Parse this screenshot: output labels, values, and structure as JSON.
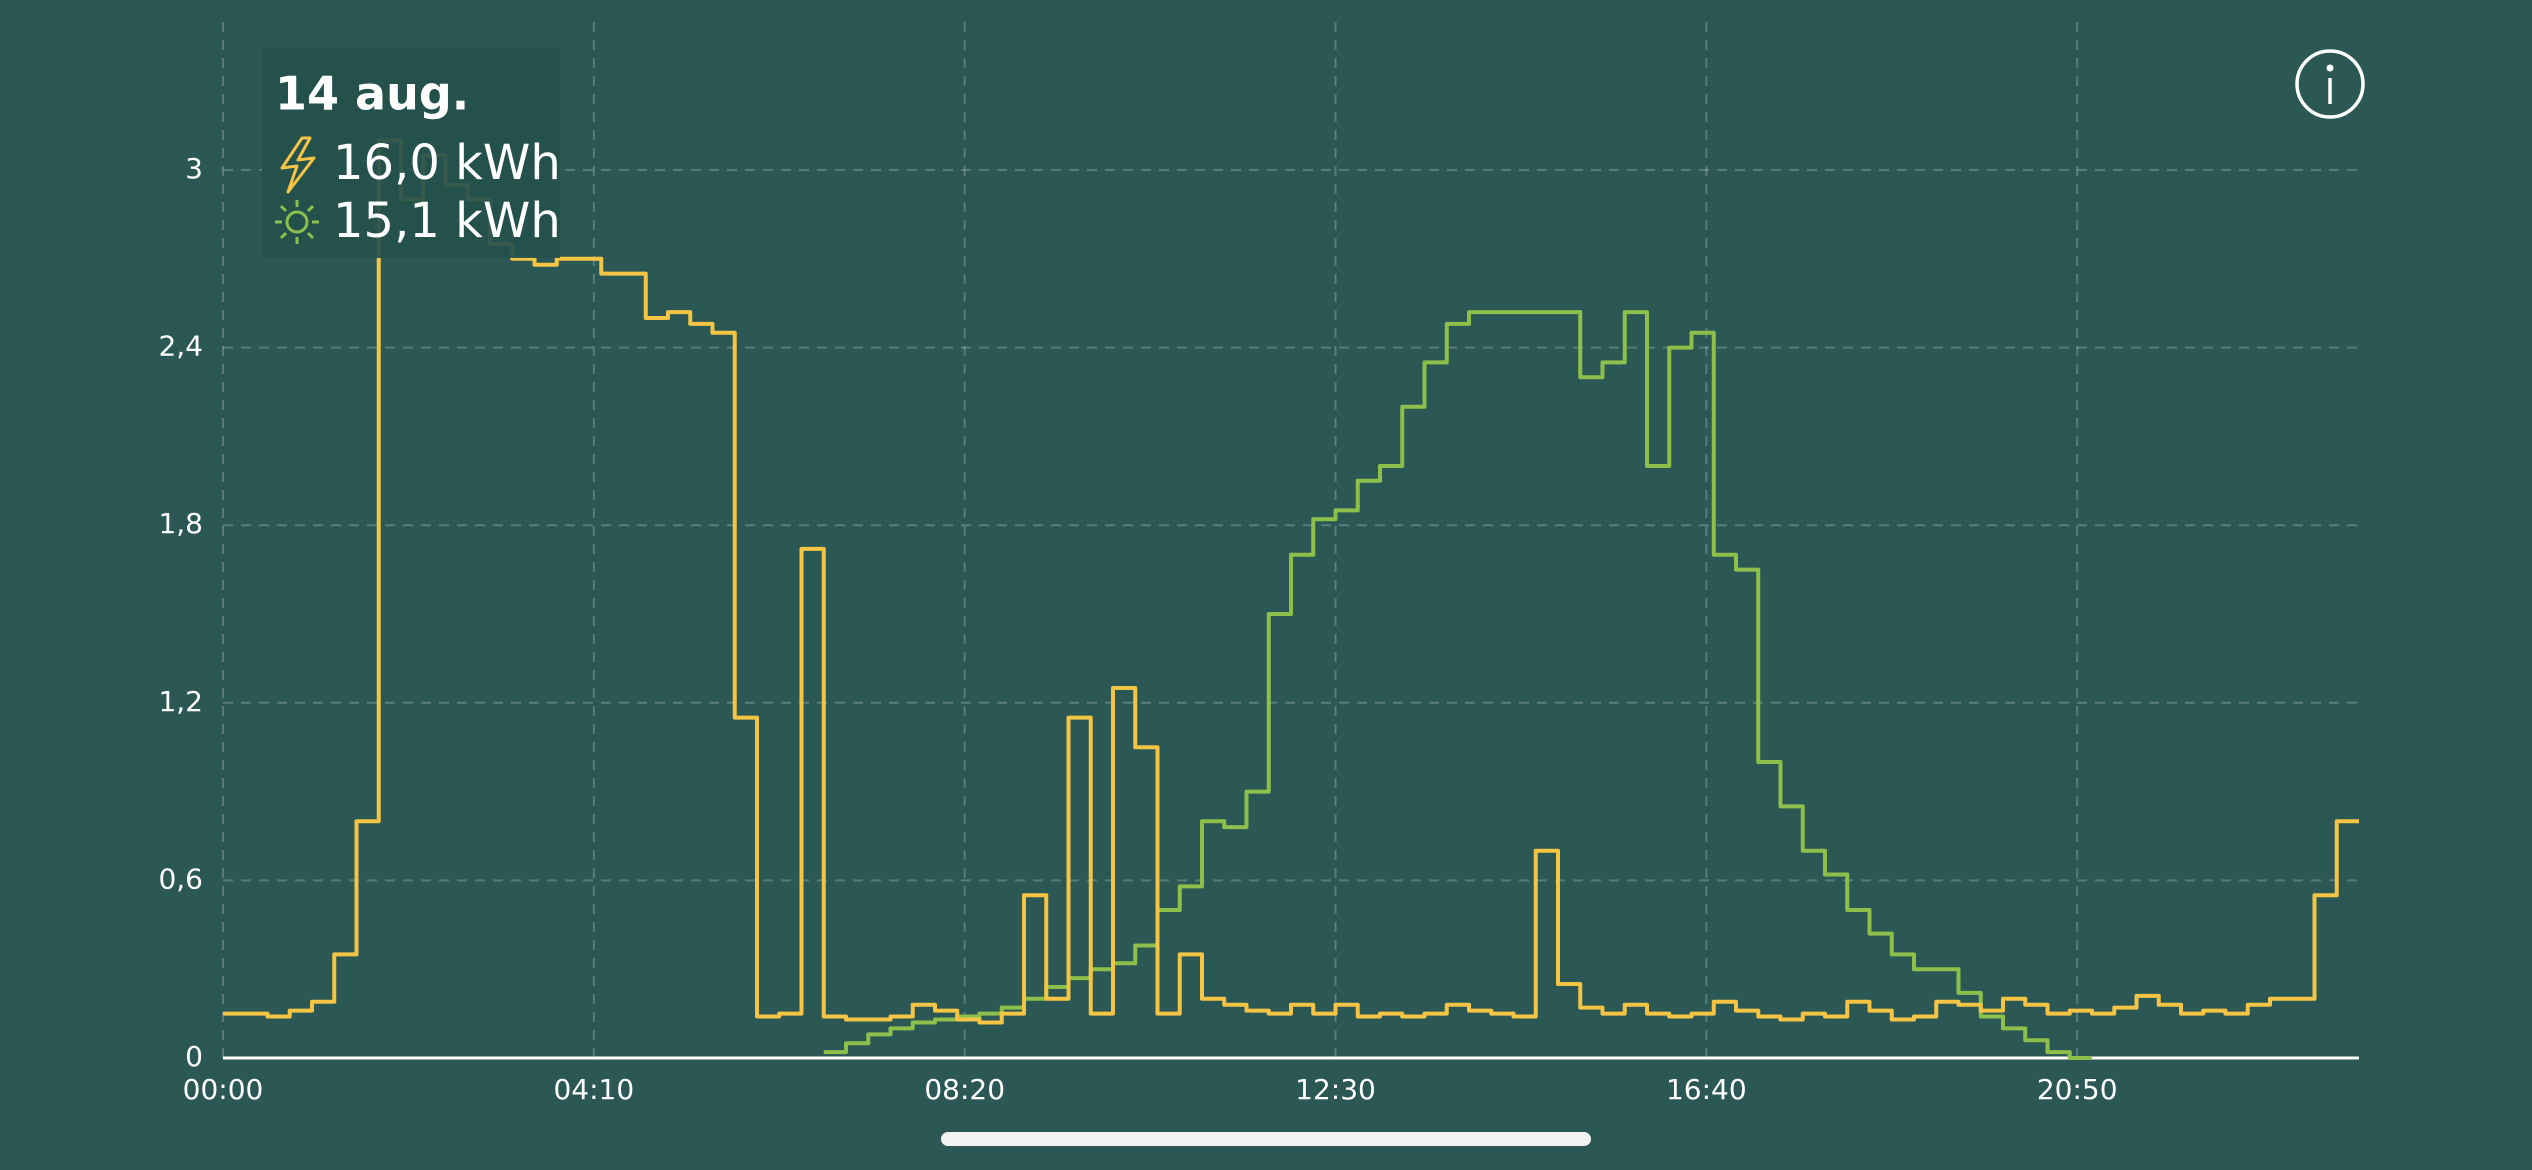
{
  "chart_data": {
    "type": "step-line",
    "title": "14 aug.",
    "x": [
      0,
      15,
      30,
      45,
      60,
      75,
      90,
      105,
      120,
      135,
      150,
      165,
      180,
      195,
      210,
      225,
      240,
      255,
      270,
      285,
      300,
      315,
      330,
      345,
      360,
      375,
      390,
      405,
      420,
      435,
      450,
      465,
      480,
      495,
      510,
      525,
      540,
      555,
      570,
      585,
      600,
      615,
      630,
      645,
      660,
      675,
      690,
      705,
      720,
      735,
      750,
      765,
      780,
      795,
      810,
      825,
      840,
      855,
      870,
      885,
      900,
      915,
      930,
      945,
      960,
      975,
      990,
      1005,
      1020,
      1035,
      1050,
      1065,
      1080,
      1095,
      1110,
      1125,
      1140,
      1155,
      1170,
      1185,
      1200,
      1215,
      1230,
      1245,
      1260,
      1275,
      1290,
      1305,
      1320,
      1335,
      1350,
      1365,
      1380,
      1395,
      1410,
      1425
    ],
    "series": [
      {
        "name": "16,0 kWh",
        "color": "#f5c445",
        "values": [
          0.15,
          0.15,
          0.14,
          0.16,
          0.19,
          0.35,
          0.8,
          3.1,
          2.9,
          3.05,
          2.95,
          2.9,
          2.75,
          2.7,
          2.68,
          2.7,
          2.7,
          2.65,
          2.65,
          2.5,
          2.52,
          2.48,
          2.45,
          1.15,
          0.14,
          0.15,
          1.72,
          0.14,
          0.13,
          0.13,
          0.14,
          0.18,
          0.16,
          0.13,
          0.12,
          0.15,
          0.55,
          0.2,
          1.15,
          0.15,
          1.25,
          1.05,
          0.15,
          0.35,
          0.2,
          0.18,
          0.16,
          0.15,
          0.18,
          0.15,
          0.18,
          0.14,
          0.15,
          0.14,
          0.15,
          0.18,
          0.16,
          0.15,
          0.14,
          0.7,
          0.25,
          0.17,
          0.15,
          0.18,
          0.15,
          0.14,
          0.15,
          0.19,
          0.16,
          0.14,
          0.13,
          0.15,
          0.14,
          0.19,
          0.16,
          0.13,
          0.14,
          0.19,
          0.18,
          0.16,
          0.2,
          0.18,
          0.15,
          0.16,
          0.15,
          0.17,
          0.21,
          0.18,
          0.15,
          0.16,
          0.15,
          0.18,
          0.2,
          0.2,
          0.55,
          0.8
        ]
      },
      {
        "name": "15,1 kWh",
        "color": "#8dc04a",
        "values": [
          null,
          null,
          null,
          null,
          null,
          null,
          null,
          null,
          null,
          null,
          null,
          null,
          null,
          null,
          null,
          null,
          null,
          null,
          null,
          null,
          null,
          null,
          null,
          null,
          null,
          null,
          null,
          0.02,
          0.05,
          0.08,
          0.1,
          0.12,
          0.13,
          0.14,
          0.15,
          0.17,
          0.2,
          0.24,
          0.27,
          0.3,
          0.32,
          0.38,
          0.5,
          0.58,
          0.8,
          0.78,
          0.9,
          1.5,
          1.7,
          1.82,
          1.85,
          1.95,
          2.0,
          2.2,
          2.35,
          2.48,
          2.52,
          2.52,
          2.52,
          2.52,
          2.52,
          2.3,
          2.35,
          2.52,
          2.0,
          2.4,
          2.45,
          1.7,
          1.65,
          1.0,
          0.85,
          0.7,
          0.62,
          0.5,
          0.42,
          0.35,
          0.3,
          0.3,
          0.22,
          0.14,
          0.1,
          0.06,
          0.02,
          0,
          null,
          null,
          null,
          null,
          null,
          null,
          null,
          null,
          null,
          null,
          null,
          null
        ]
      }
    ],
    "xlim": [
      0,
      1440
    ],
    "xticks": [
      {
        "value": 0,
        "label": "00:00"
      },
      {
        "value": 250,
        "label": "04:10"
      },
      {
        "value": 500,
        "label": "08:20"
      },
      {
        "value": 750,
        "label": "12:30"
      },
      {
        "value": 1000,
        "label": "16:40"
      },
      {
        "value": 1250,
        "label": "20:50"
      }
    ],
    "ylim": [
      0,
      3.5
    ],
    "yticks": [
      0,
      {
        "value": 0.6,
        "label": "0,6"
      },
      {
        "value": 1.2,
        "label": "1,2"
      },
      {
        "value": 1.8,
        "label": "1,8"
      },
      {
        "value": 2.4,
        "label": "2,4"
      },
      3
    ],
    "grid": true
  }
}
